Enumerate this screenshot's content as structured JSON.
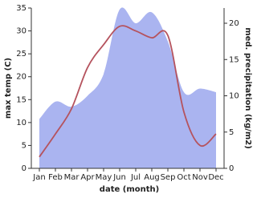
{
  "chart_data": {
    "type": "area-line",
    "categories": [
      "Jan",
      "Feb",
      "Mar",
      "Apr",
      "May",
      "Jun",
      "Jul",
      "Aug",
      "Sep",
      "Oct",
      "Nov",
      "Dec"
    ],
    "series": [
      {
        "name": "med. precipitation (kg/m2)",
        "color": "#aab4f0",
        "axis": "y2",
        "values": [
          6.8,
          9.2,
          8.5,
          10,
          13,
          21.9,
          20,
          21.5,
          17.5,
          10.5,
          11,
          10.5
        ]
      },
      {
        "name": "max temp (C)",
        "color": "#b5535e",
        "values": [
          2.5,
          7.5,
          13,
          22,
          27,
          31,
          30,
          28.5,
          29,
          12.3,
          5,
          7.5
        ]
      }
    ],
    "ylabel": "max temp (C)",
    "y2label": "med. precipitation (kg/m2)",
    "xlabel": "date (month)",
    "ylim": [
      0,
      35
    ],
    "yticks": [
      0,
      5,
      10,
      15,
      20,
      25,
      30,
      35
    ],
    "y2lim": [
      0,
      22.1
    ],
    "y2ticks": [
      0,
      5,
      10,
      15,
      20
    ]
  }
}
